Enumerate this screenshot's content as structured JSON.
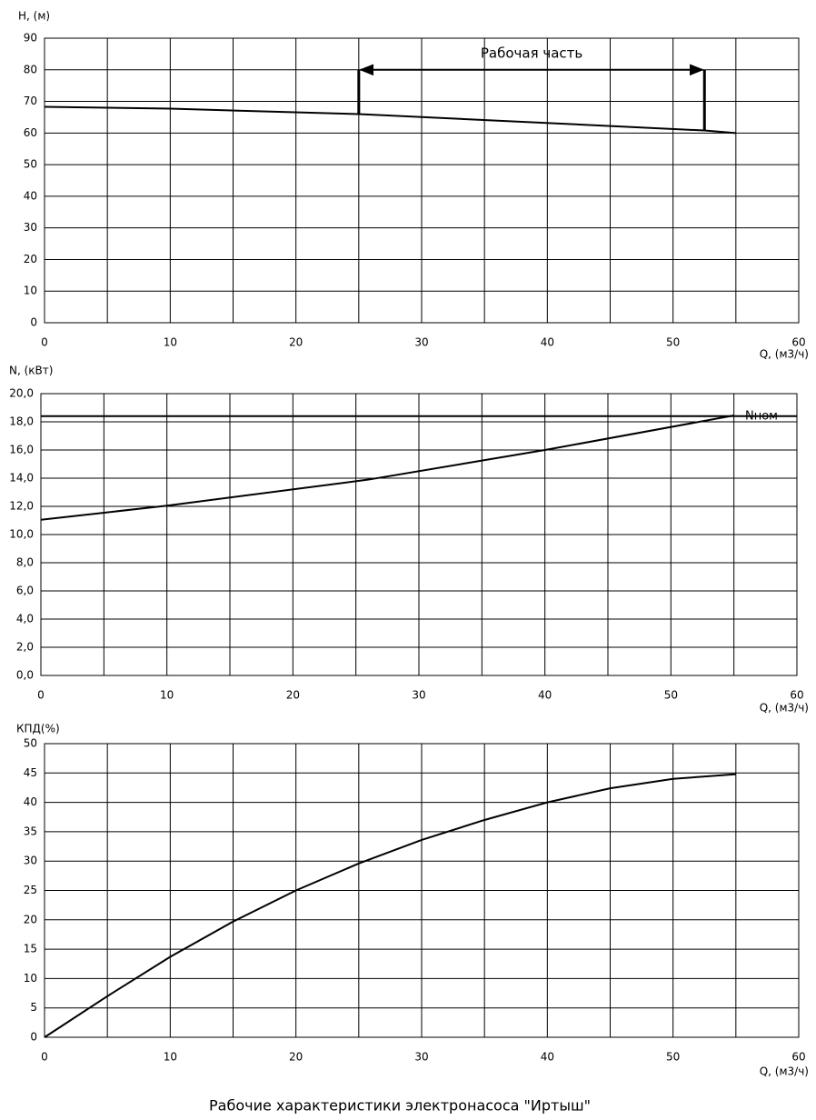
{
  "caption": "Рабочие характеристики электронасоса \"Иртыш\"",
  "chart_data": [
    {
      "type": "line",
      "ylabel": "H, (м)",
      "xlabel": "Q, (м3/ч)",
      "xlim": [
        0,
        60
      ],
      "xticks": [
        0,
        10,
        20,
        30,
        40,
        50,
        60
      ],
      "x_minor_grid": [
        5,
        15,
        25,
        35,
        45,
        55
      ],
      "ylim": [
        0,
        90
      ],
      "yticks": [
        0,
        10,
        20,
        30,
        40,
        50,
        60,
        70,
        80,
        90
      ],
      "grid": true,
      "series": [
        {
          "color": "#000000",
          "x": [
            0,
            10,
            25,
            52.5,
            55
          ],
          "values": [
            68.3,
            67.7,
            66,
            60.8,
            60
          ]
        }
      ],
      "annotations": [
        {
          "text": "Рабочая часть",
          "x": [
            25,
            52.5
          ],
          "y": 80
        }
      ]
    },
    {
      "type": "line",
      "ylabel": "N, (кВт)",
      "xlabel": "Q, (м3/ч)",
      "xlim": [
        0,
        60
      ],
      "xticks": [
        0,
        10,
        20,
        30,
        40,
        50,
        60
      ],
      "x_minor_grid": [
        5,
        15,
        25,
        35,
        45,
        55
      ],
      "ylim": [
        0,
        20
      ],
      "yticks": [
        {
          "value": 0,
          "label": "0,0"
        },
        {
          "value": 2,
          "label": "2,0"
        },
        {
          "value": 4,
          "label": "4,0"
        },
        {
          "value": 6,
          "label": "6,0"
        },
        {
          "value": 8,
          "label": "8,0"
        },
        {
          "value": 10,
          "label": "10,0"
        },
        {
          "value": 12,
          "label": "12,0"
        },
        {
          "value": 14,
          "label": "14,0"
        },
        {
          "value": 16,
          "label": "16,0"
        },
        {
          "value": 18,
          "label": "18,0"
        },
        {
          "value": 20,
          "label": "20,0"
        }
      ],
      "grid": true,
      "series": [
        {
          "color": "#000000",
          "x": [
            0,
            10,
            26,
            40,
            55
          ],
          "values": [
            11.05,
            12.05,
            13.9,
            16.0,
            18.45
          ]
        }
      ],
      "hlines": [
        {
          "label": "Nном",
          "value": 18.4
        }
      ]
    },
    {
      "type": "line",
      "ylabel": "КПД(%)",
      "xlabel": "Q, (м3/ч)",
      "xlim": [
        0,
        60
      ],
      "xticks": [
        0,
        10,
        20,
        30,
        40,
        50,
        60
      ],
      "x_minor_grid": [
        5,
        15,
        25,
        35,
        45,
        55
      ],
      "ylim": [
        0,
        50
      ],
      "yticks": [
        0,
        5,
        10,
        15,
        20,
        25,
        30,
        35,
        40,
        45,
        50
      ],
      "grid": true,
      "series": [
        {
          "color": "#000000",
          "x": [
            0,
            5,
            10,
            15,
            20,
            25,
            30,
            35,
            40,
            45,
            50,
            55
          ],
          "values": [
            0,
            7,
            13.7,
            19.7,
            25,
            29.6,
            33.6,
            37,
            40,
            42.4,
            44,
            44.8
          ]
        }
      ]
    }
  ]
}
